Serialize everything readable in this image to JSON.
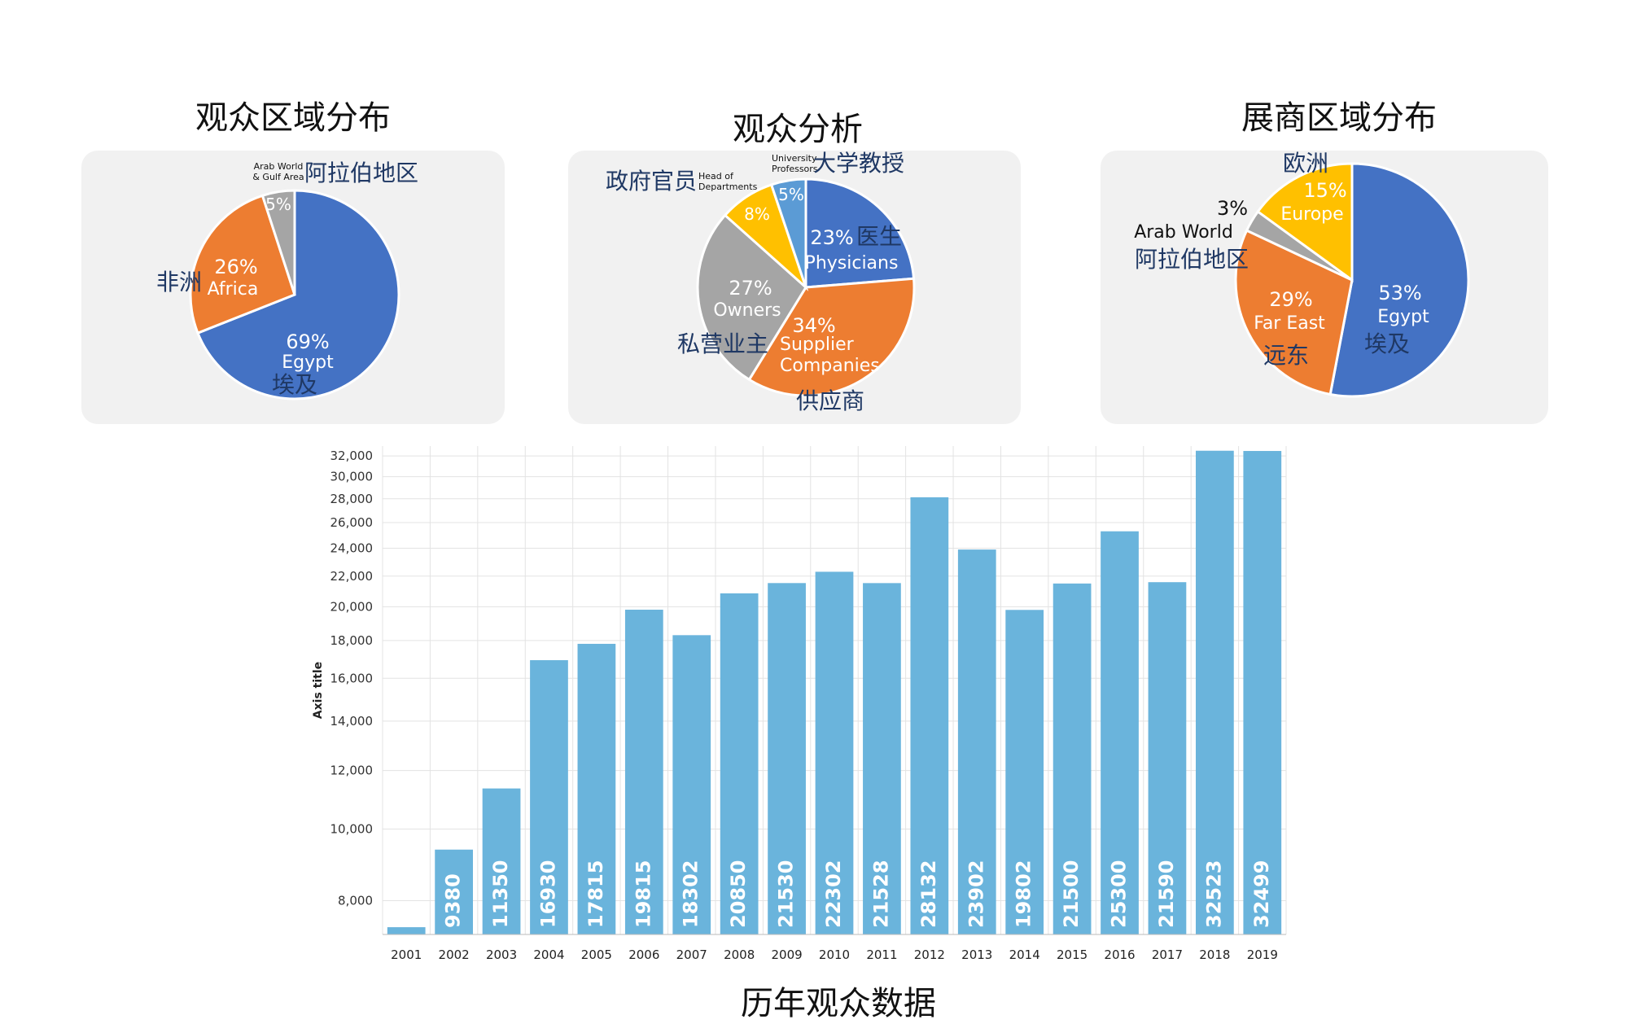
{
  "chart_data": [
    {
      "type": "pie",
      "title": "观众区域分布",
      "slices": [
        {
          "pct_label": "69%",
          "label_en": "Egypt",
          "label_cn": "埃及",
          "value": 69,
          "color": "#4472c4"
        },
        {
          "pct_label": "26%",
          "label_en": "Africa",
          "label_cn": "非洲",
          "value": 26,
          "color": "#ed7d31"
        },
        {
          "pct_label": "5%",
          "label_en_lines": [
            "Arab World",
            "& Gulf Area"
          ],
          "label_cn": "阿拉伯地区",
          "value": 5,
          "color": "#a5a5a5"
        }
      ]
    },
    {
      "type": "pie",
      "title": "观众分析",
      "slices": [
        {
          "pct_label": "23%",
          "label_en": "Physicians",
          "label_cn": "医生",
          "value": 23,
          "color": "#4472c4"
        },
        {
          "pct_label": "34%",
          "label_en_lines": [
            "Supplier",
            "Companies"
          ],
          "label_cn": "供应商",
          "value": 34,
          "color": "#ed7d31"
        },
        {
          "pct_label": "27%",
          "label_en": "Owners",
          "label_cn": "私营业主",
          "value": 27,
          "color": "#a5a5a5"
        },
        {
          "pct_label": "8%",
          "label_en_lines": [
            "Head of",
            "Departments"
          ],
          "label_cn": "政府官员",
          "value": 8,
          "color": "#ffc000"
        },
        {
          "pct_label": "5%",
          "label_en_lines": [
            "University",
            "Professors"
          ],
          "label_cn": "大学教授",
          "value": 5,
          "color": "#5b9bd5"
        }
      ]
    },
    {
      "type": "pie",
      "title": "展商区域分布",
      "slices": [
        {
          "pct_label": "53%",
          "label_en": "Egypt",
          "label_cn": "埃及",
          "value": 53,
          "color": "#4472c4"
        },
        {
          "pct_label": "29%",
          "label_en": "Far East",
          "label_cn": "远东",
          "value": 29,
          "color": "#ed7d31"
        },
        {
          "pct_label": "3%",
          "label_en": "Arab World",
          "label_cn": "阿拉伯地区",
          "value": 3,
          "color": "#a5a5a5"
        },
        {
          "pct_label": "15%",
          "label_en": "Europe",
          "label_cn": "欧洲",
          "value": 15,
          "color": "#ffc000"
        }
      ]
    },
    {
      "type": "bar",
      "title": "历年观众数据",
      "ylabel": "Axis title",
      "xlabel": "",
      "ylim": [
        7200,
        33000
      ],
      "yscale": "log",
      "yticks": [
        8000,
        10000,
        12000,
        14000,
        16000,
        18000,
        20000,
        22000,
        24000,
        26000,
        28000,
        30000,
        32000
      ],
      "ytick_labels": [
        "8,000",
        "10,000",
        "12,000",
        "14,000",
        "16,000",
        "18,000",
        "20,000",
        "22,000",
        "24,000",
        "26,000",
        "28,000",
        "30,000",
        "32,000"
      ],
      "categories": [
        "2001",
        "2002",
        "2003",
        "2004",
        "2005",
        "2006",
        "2007",
        "2008",
        "2009",
        "2010",
        "2011",
        "2012",
        "2013",
        "2014",
        "2015",
        "2016",
        "2017",
        "2018",
        "2019"
      ],
      "values": [
        7365,
        9380,
        11350,
        16930,
        17815,
        19815,
        18302,
        20850,
        21530,
        22302,
        21528,
        28132,
        23902,
        19802,
        21500,
        25300,
        21590,
        32523,
        32499
      ],
      "bar_color": "#6ab4dc",
      "grid": true
    }
  ]
}
